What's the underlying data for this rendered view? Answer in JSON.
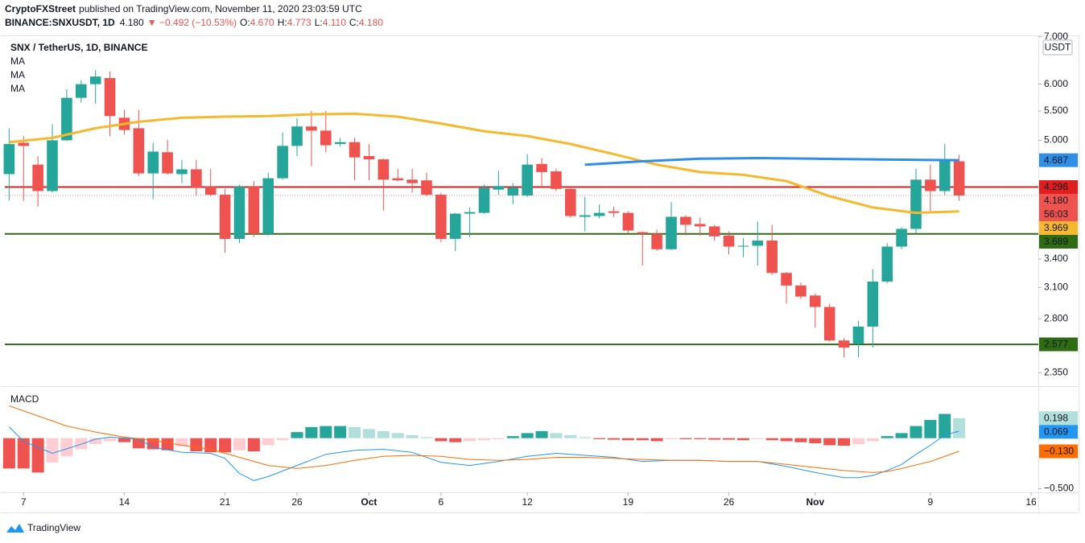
{
  "header": {
    "author": "CryptoFXStreet",
    "published": "published on TradingView.com, November 11, 2020 23:03:59 UTC",
    "symbol": "BINANCE:SNXUSDT, 1D",
    "price": "4.180",
    "change": "▼ −0.492 (−10.53%)",
    "ohlc": [
      {
        "label": "O:",
        "value": "4.670"
      },
      {
        "label": "H:",
        "value": "4.773"
      },
      {
        "label": "L:",
        "value": "4.110"
      },
      {
        "label": "C:",
        "value": "4.180"
      }
    ]
  },
  "footer": {
    "brand": "TradingView"
  },
  "chart_data": [
    {
      "type": "candlestick",
      "title": "SNX / TetherUS, 1D, BINANCE",
      "currency": "USDT",
      "indicator_labels": [
        "MA",
        "MA",
        "MA"
      ],
      "log_scale": true,
      "ylim": [
        2.25,
        7.03
      ],
      "xlim": [
        -0.3,
        71.5
      ],
      "yticks": [
        {
          "value": 2.35,
          "label": "2.350"
        },
        {
          "value": 2.8,
          "label": "2.800"
        },
        {
          "value": 3.1,
          "label": "3.100"
        },
        {
          "value": 3.4,
          "label": "3.400"
        },
        {
          "value": 5,
          "label": "5.000"
        },
        {
          "value": 5.5,
          "label": "5.500"
        },
        {
          "value": 6,
          "label": "6.000"
        },
        {
          "value": 7,
          "label": "7.000"
        }
      ],
      "xticks": [
        {
          "value": 1,
          "label": "7"
        },
        {
          "value": 8,
          "label": "14"
        },
        {
          "value": 15,
          "label": "21"
        },
        {
          "value": 20,
          "label": "26"
        },
        {
          "value": 25,
          "label": "Oct"
        },
        {
          "value": 30,
          "label": "6"
        },
        {
          "value": 36,
          "label": "12"
        },
        {
          "value": 43,
          "label": "19"
        },
        {
          "value": 50,
          "label": "26"
        },
        {
          "value": 56,
          "label": "Nov"
        },
        {
          "value": 64,
          "label": "9"
        },
        {
          "value": 71,
          "label": "16"
        }
      ],
      "up_color": "#26a69a",
      "down_color": "#ef5350",
      "open": [
        4.48,
        4.96,
        4.62,
        4.24,
        5.0,
        5.74,
        6.0,
        6.12,
        5.38,
        5.2,
        4.49,
        4.81,
        4.48,
        4.55,
        4.3,
        4.19,
        3.63,
        4.3,
        3.69,
        4.42,
        4.91,
        5.23,
        5.16,
        4.94,
        4.97,
        4.75,
        4.7,
        4.42,
        4.4,
        4.39,
        4.19,
        3.63,
        3.94,
        3.95,
        4.26,
        4.18,
        4.18,
        4.63,
        4.52,
        4.27,
        3.9,
        3.91,
        3.97,
        3.95,
        3.71,
        3.69,
        3.51,
        3.9,
        3.81,
        3.78,
        3.67,
        3.54,
        3.55,
        3.61,
        3.25,
        3.12,
        3.02,
        2.91,
        2.61,
        2.58,
        2.73,
        3.16,
        3.54,
        3.75,
        4.4,
        4.24,
        4.67
      ],
      "high": [
        5.2,
        5.07,
        4.75,
        5.27,
        5.9,
        6.08,
        6.28,
        6.25,
        5.52,
        5.52,
        4.96,
        5.01,
        4.69,
        4.69,
        4.56,
        4.27,
        4.33,
        4.38,
        4.5,
        5.13,
        5.37,
        5.5,
        5.5,
        5.04,
        5.04,
        4.94,
        4.71,
        4.56,
        4.56,
        4.5,
        4.22,
        3.95,
        4.02,
        4.33,
        4.53,
        4.35,
        4.78,
        4.72,
        4.56,
        4.3,
        4.16,
        4.06,
        4.03,
        3.97,
        3.72,
        3.74,
        4.09,
        3.92,
        3.89,
        3.8,
        3.72,
        3.64,
        3.84,
        3.8,
        3.26,
        3.15,
        3.04,
        2.94,
        2.63,
        2.78,
        3.29,
        3.58,
        3.77,
        4.56,
        4.62,
        4.94,
        4.773
      ],
      "low": [
        4.11,
        4.11,
        4.03,
        4.22,
        4.99,
        5.65,
        5.63,
        5.07,
        5.09,
        4.45,
        4.13,
        4.47,
        4.35,
        4.18,
        4.17,
        3.47,
        3.58,
        3.65,
        3.67,
        4.4,
        4.75,
        4.6,
        4.81,
        4.9,
        4.39,
        4.39,
        3.98,
        4.38,
        4.22,
        4.17,
        3.59,
        3.49,
        3.65,
        3.94,
        4.19,
        4.06,
        4.16,
        4.31,
        4.24,
        3.89,
        3.72,
        3.88,
        3.9,
        3.7,
        3.33,
        3.49,
        3.5,
        3.67,
        3.67,
        3.61,
        3.45,
        3.42,
        3.33,
        3.23,
        2.94,
        2.99,
        2.72,
        2.6,
        2.47,
        2.47,
        2.55,
        3.14,
        3.51,
        3.7,
        3.95,
        4.18,
        4.11
      ],
      "close": [
        4.94,
        4.91,
        4.24,
        5.0,
        5.74,
        6.0,
        6.15,
        5.41,
        5.17,
        4.49,
        4.82,
        4.49,
        4.55,
        4.29,
        4.19,
        3.63,
        4.3,
        3.69,
        4.42,
        4.91,
        5.23,
        5.16,
        4.92,
        4.97,
        4.73,
        4.7,
        4.4,
        4.39,
        4.35,
        4.19,
        3.63,
        3.94,
        3.96,
        4.29,
        4.31,
        4.29,
        4.62,
        4.51,
        4.27,
        3.91,
        3.92,
        3.95,
        3.95,
        3.73,
        3.69,
        3.51,
        3.9,
        3.8,
        3.78,
        3.66,
        3.54,
        3.55,
        3.61,
        3.25,
        3.12,
        3.01,
        2.91,
        2.61,
        2.55,
        2.73,
        3.16,
        3.54,
        3.75,
        4.4,
        4.24,
        4.672,
        4.18
      ],
      "ma_lines": [
        {
          "color": "#f5b82e",
          "x": [
            0,
            3,
            6,
            9,
            12,
            15,
            18,
            21,
            24,
            27,
            30,
            33,
            36,
            39,
            42,
            45,
            48,
            51,
            54,
            57,
            60,
            63,
            66
          ],
          "values": [
            4.97,
            5.04,
            5.2,
            5.31,
            5.38,
            5.4,
            5.41,
            5.44,
            5.45,
            5.4,
            5.28,
            5.15,
            5.07,
            4.94,
            4.78,
            4.62,
            4.51,
            4.47,
            4.38,
            4.17,
            4.02,
            3.95,
            3.969
          ]
        },
        {
          "color": "#2f8ee6",
          "x": [
            40,
            44,
            48,
            52,
            56,
            60,
            64,
            66
          ],
          "values": [
            4.62,
            4.67,
            4.71,
            4.72,
            4.71,
            4.7,
            4.69,
            4.687
          ]
        }
      ],
      "levels": [
        {
          "value": 4.296,
          "color": "#e01e1e"
        },
        {
          "value": 3.689,
          "color": "#2e6b12"
        },
        {
          "value": 2.577,
          "color": "#2e6b12"
        }
      ],
      "last_price": {
        "value": 4.18,
        "label": "4.180",
        "color": "#ef5350"
      },
      "countdown": "56:03"
    },
    {
      "type": "macd",
      "title": "MACD",
      "ylim": [
        -0.536,
        0.491
      ],
      "yticks": [
        {
          "value": -0.5,
          "label": "−0.500"
        }
      ],
      "hist_colors": {
        "up_strong": "#26a69a",
        "up_weak": "#b2dfdb",
        "down_strong": "#ef5350",
        "down_weak": "#ffcdd2"
      },
      "histogram": [
        -0.3,
        -0.3,
        -0.34,
        -0.24,
        -0.18,
        -0.11,
        -0.06,
        -0.03,
        -0.04,
        -0.1,
        -0.11,
        -0.12,
        -0.08,
        -0.13,
        -0.14,
        -0.14,
        -0.12,
        -0.13,
        -0.07,
        -0.02,
        0.06,
        0.11,
        0.12,
        0.12,
        0.11,
        0.09,
        0.07,
        0.05,
        0.03,
        0.01,
        -0.03,
        -0.04,
        -0.03,
        -0.02,
        -0.01,
        0.02,
        0.05,
        0.07,
        0.05,
        0.03,
        0.01,
        -0.01,
        -0.015,
        -0.02,
        -0.02,
        -0.03,
        -0.01,
        -0.01,
        -0.01,
        -0.015,
        -0.015,
        -0.02,
        -0.01,
        -0.02,
        -0.03,
        -0.04,
        -0.05,
        -0.07,
        -0.075,
        -0.06,
        -0.03,
        0.02,
        0.05,
        0.12,
        0.18,
        0.24,
        0.198
      ],
      "series": [
        {
          "color": "#2196f3",
          "x": [
            0,
            1,
            3,
            5,
            6,
            7,
            9,
            10,
            12,
            14,
            15,
            16,
            17,
            18,
            20,
            22,
            24,
            26,
            28,
            30,
            32,
            34,
            36,
            38,
            40,
            42,
            44,
            46,
            48,
            50,
            52,
            54,
            56,
            58,
            59,
            60,
            61,
            62,
            63,
            64,
            65,
            66
          ],
          "values": [
            0.11,
            -0.03,
            -0.15,
            -0.06,
            -0.01,
            0.01,
            -0.01,
            -0.09,
            -0.14,
            -0.15,
            -0.2,
            -0.35,
            -0.42,
            -0.38,
            -0.27,
            -0.16,
            -0.12,
            -0.11,
            -0.14,
            -0.24,
            -0.27,
            -0.23,
            -0.18,
            -0.15,
            -0.17,
            -0.19,
            -0.23,
            -0.22,
            -0.22,
            -0.23,
            -0.23,
            -0.28,
            -0.34,
            -0.39,
            -0.39,
            -0.37,
            -0.32,
            -0.26,
            -0.16,
            -0.07,
            0.03,
            0.069
          ]
        },
        {
          "color": "#ff6d00",
          "x": [
            0,
            2,
            4,
            6,
            8,
            10,
            12,
            14,
            16,
            18,
            20,
            22,
            24,
            26,
            28,
            30,
            32,
            34,
            36,
            38,
            40,
            42,
            44,
            46,
            48,
            50,
            52,
            54,
            56,
            58,
            60,
            61,
            62,
            64,
            66
          ],
          "values": [
            0.32,
            0.22,
            0.12,
            0.06,
            0.01,
            -0.02,
            -0.07,
            -0.11,
            -0.19,
            -0.27,
            -0.3,
            -0.27,
            -0.22,
            -0.18,
            -0.17,
            -0.18,
            -0.21,
            -0.22,
            -0.21,
            -0.19,
            -0.19,
            -0.2,
            -0.21,
            -0.22,
            -0.22,
            -0.23,
            -0.23,
            -0.26,
            -0.29,
            -0.32,
            -0.34,
            -0.33,
            -0.3,
            -0.23,
            -0.13
          ],
          "value_labels": [
            null,
            null,
            null,
            null,
            null,
            null,
            null,
            null,
            null,
            null,
            null,
            null,
            null,
            null,
            null,
            null,
            null,
            null,
            null,
            null,
            null,
            null,
            null,
            null,
            null,
            null,
            null,
            null,
            null,
            null,
            null,
            null,
            null,
            null,
            "−0.130"
          ]
        }
      ]
    }
  ]
}
